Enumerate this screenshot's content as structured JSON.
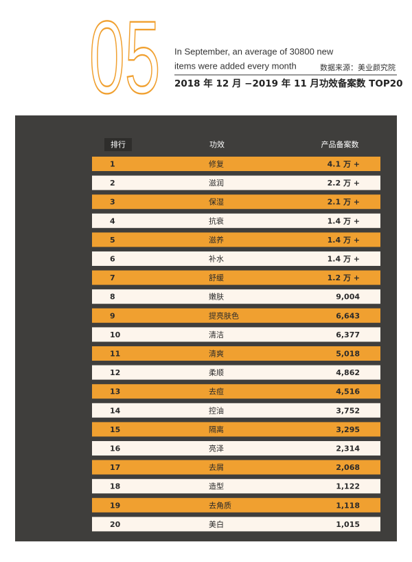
{
  "header": {
    "number": "05",
    "line1": "In September, an average of 30800 new",
    "line2": "items were added every month",
    "source": "数据来源：美业颜究院",
    "title": "2018 年 12 月 −2019 年 11 月功效备案数 TOP20"
  },
  "table": {
    "columns": [
      "排行",
      "功效",
      "产品备案数"
    ],
    "rows": [
      [
        "1",
        "修复",
        "4.1 万 +"
      ],
      [
        "2",
        "滋润",
        "2.2 万 +"
      ],
      [
        "3",
        "保湿",
        "2.1 万 +"
      ],
      [
        "4",
        "抗衰",
        "1.4 万 +"
      ],
      [
        "5",
        "滋养",
        "1.4 万 +"
      ],
      [
        "6",
        "补水",
        "1.4 万 +"
      ],
      [
        "7",
        "舒缓",
        "1.2 万 +"
      ],
      [
        "8",
        "嫩肤",
        "9,004"
      ],
      [
        "9",
        "提亮肤色",
        "6,643"
      ],
      [
        "10",
        "清洁",
        "6,377"
      ],
      [
        "11",
        "清爽",
        "5,018"
      ],
      [
        "12",
        "柔顺",
        "4,862"
      ],
      [
        "13",
        "去痘",
        "4,516"
      ],
      [
        "14",
        "控油",
        "3,752"
      ],
      [
        "15",
        "隔离",
        "3,295"
      ],
      [
        "16",
        "亮泽",
        "2,314"
      ],
      [
        "17",
        "去屑",
        "2,068"
      ],
      [
        "18",
        "造型",
        "1,122"
      ],
      [
        "19",
        "去角质",
        "1,118"
      ],
      [
        "20",
        "美白",
        "1,015"
      ]
    ]
  }
}
